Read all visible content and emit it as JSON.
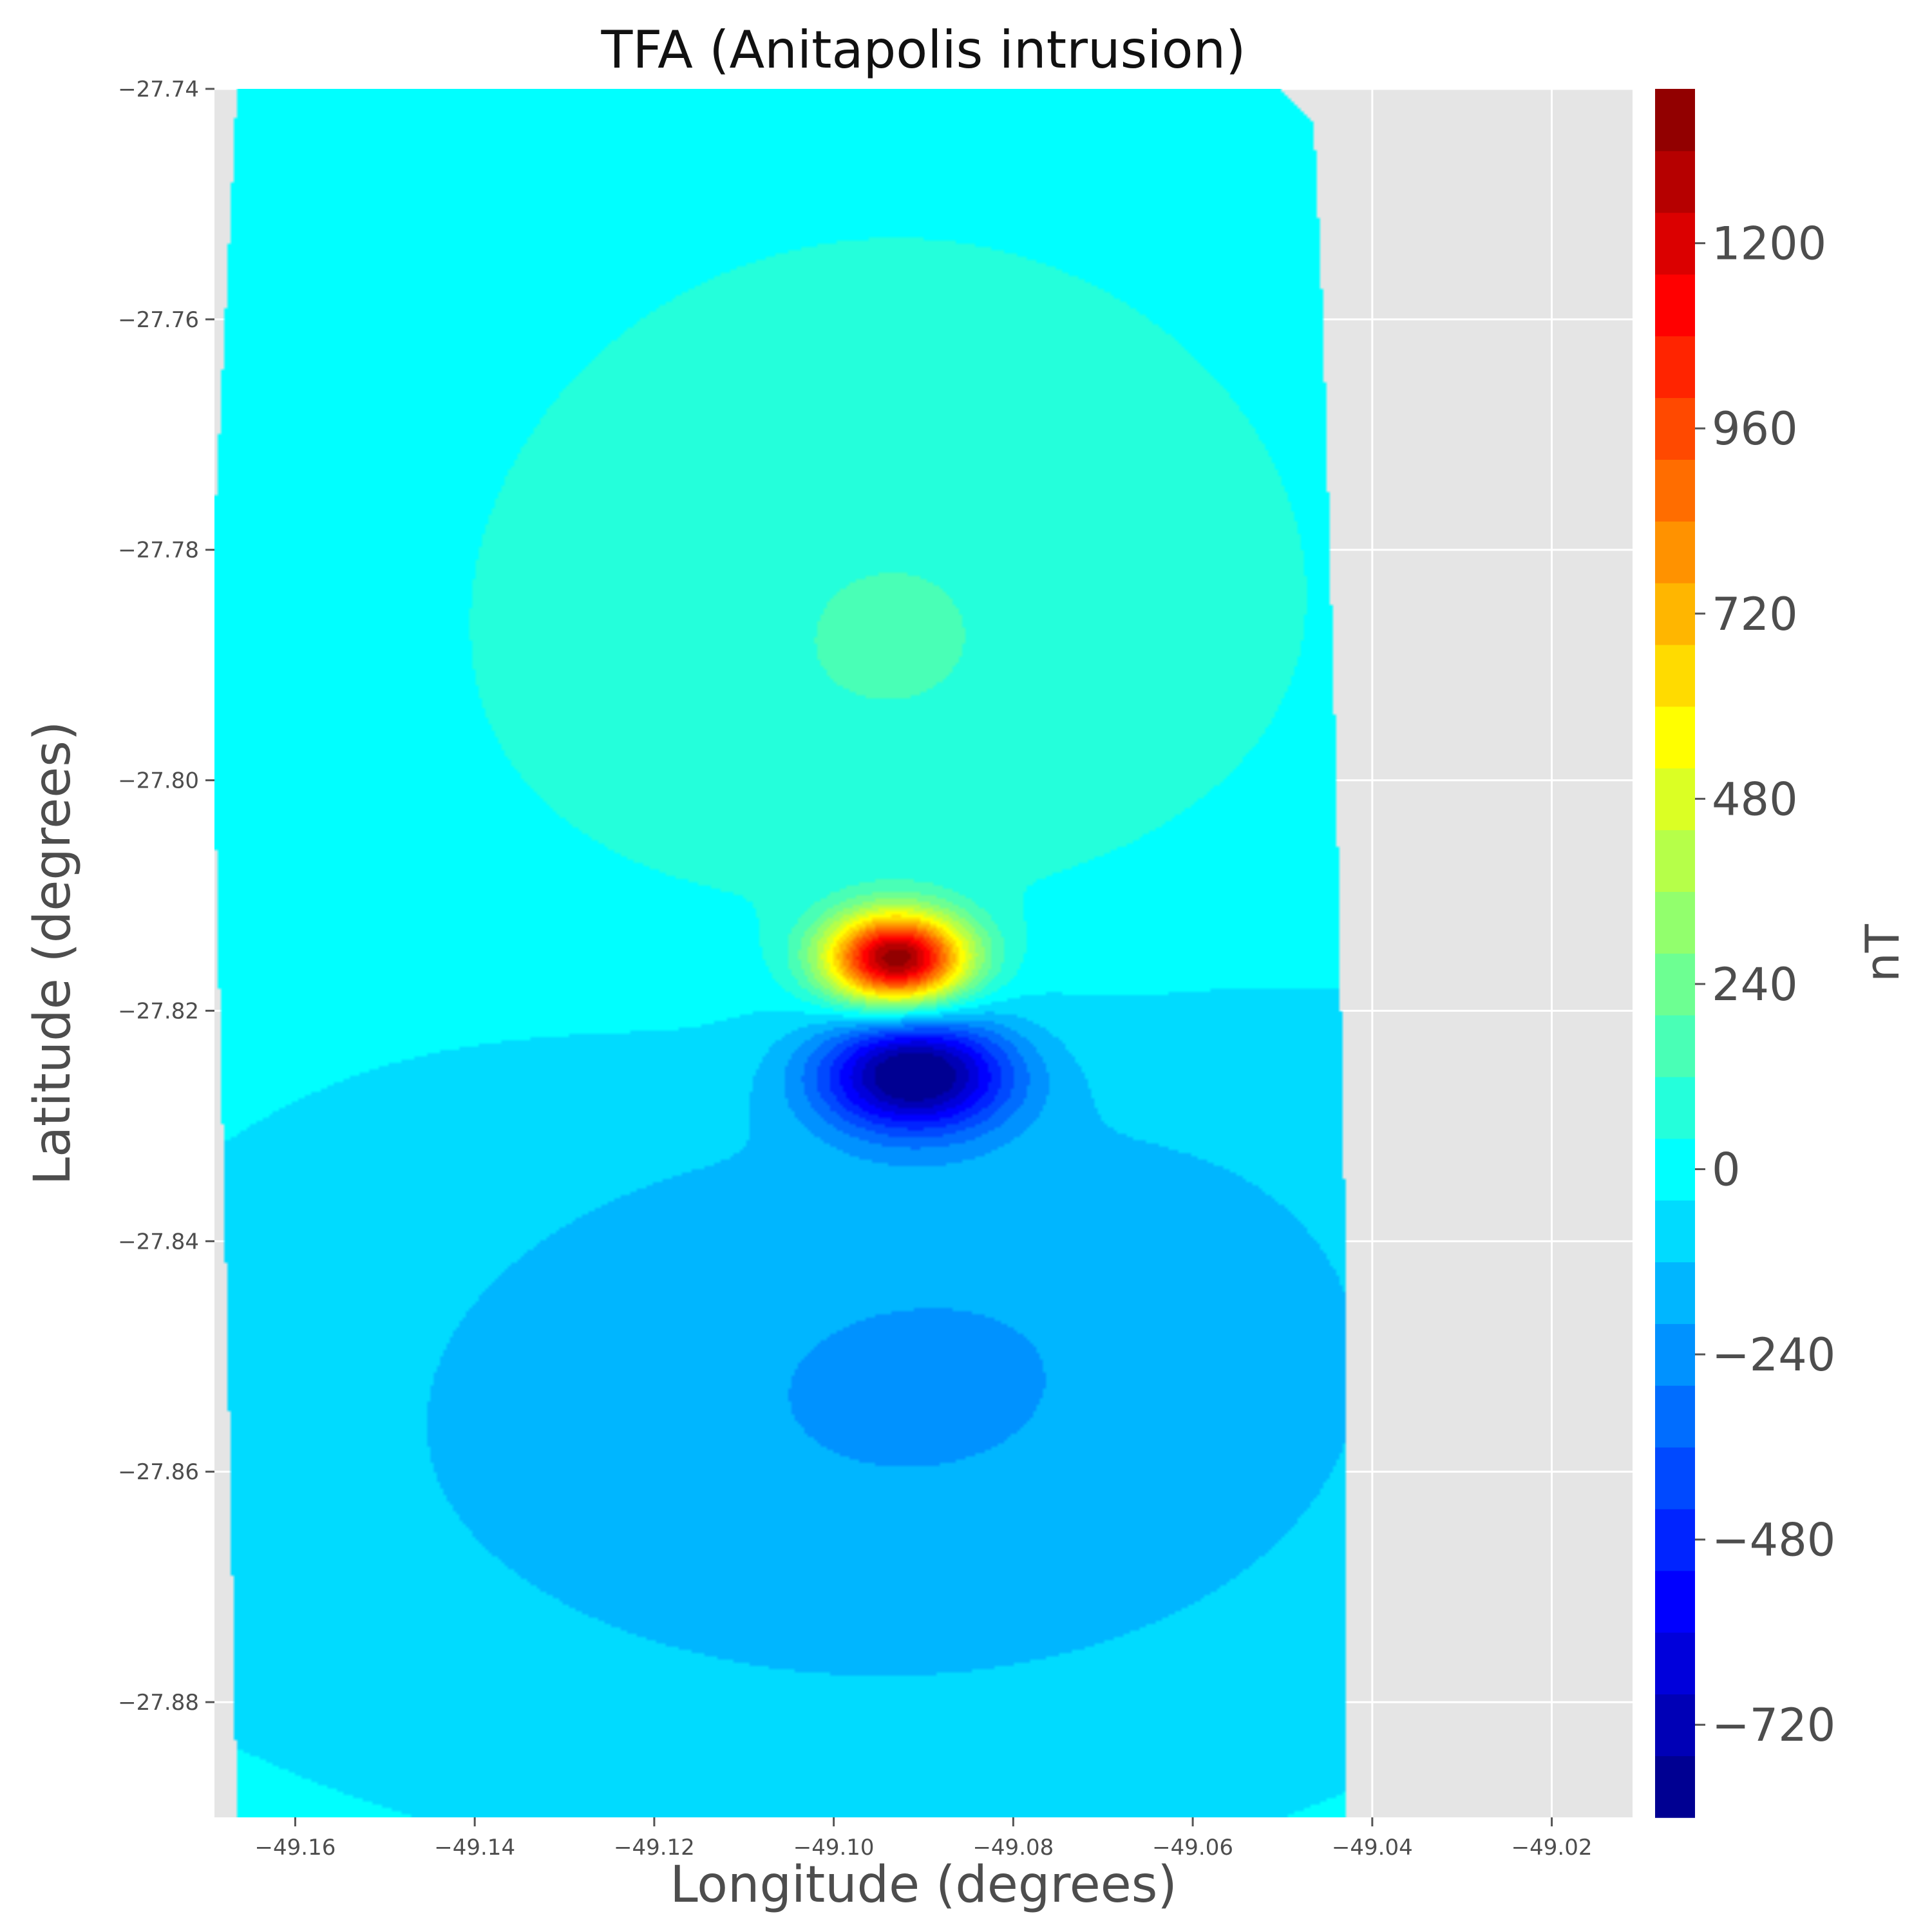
{
  "chart_data": {
    "type": "contourf",
    "title": "TFA (Anitapolis intrusion)",
    "xlabel": "Longitude (degrees)",
    "ylabel": "Latitude (degrees)",
    "colorbar_label": "nT",
    "xlim": [
      -49.169,
      -49.011
    ],
    "ylim": [
      -27.89,
      -27.74
    ],
    "xticks": [
      -49.16,
      -49.14,
      -49.12,
      -49.1,
      -49.08,
      -49.06,
      -49.04,
      -49.02
    ],
    "yticks": [
      -27.74,
      -27.76,
      -27.78,
      -27.8,
      -27.82,
      -27.84,
      -27.86,
      -27.88
    ],
    "xtick_labels": [
      "−49.16",
      "−49.14",
      "−49.12",
      "−49.10",
      "−49.08",
      "−49.06",
      "−49.04",
      "−49.02"
    ],
    "ytick_labels": [
      "−27.74",
      "−27.76",
      "−27.78",
      "−27.80",
      "−27.82",
      "−27.84",
      "−27.86",
      "−27.88"
    ],
    "colorbar_range": [
      -840,
      1400
    ],
    "level_step": 80,
    "colorbar_ticks": [
      -720,
      -480,
      -240,
      0,
      240,
      480,
      720,
      960,
      1200
    ],
    "colorbar_tick_labels": [
      "−720",
      "−480",
      "−240",
      "0",
      "240",
      "480",
      "720",
      "960",
      "1200"
    ],
    "colormap": "jet",
    "grid": true,
    "background_color": "#e5e5e5",
    "anomalies": [
      {
        "kind": "positive",
        "lon": -49.093,
        "lat": -27.8155,
        "peak": 1380,
        "sigma_lon": 0.0055,
        "sigma_lat": 0.0028
      },
      {
        "kind": "negative",
        "lon": -49.091,
        "lat": -27.8255,
        "peak": -820,
        "sigma_lon": 0.0075,
        "sigma_lat": 0.0035
      }
    ],
    "survey_outline": [
      [
        -49.1665,
        -27.74
      ],
      [
        -49.0505,
        -27.74
      ],
      [
        -49.0465,
        -27.743
      ],
      [
        -49.0455,
        -27.76
      ],
      [
        -49.044,
        -27.8
      ],
      [
        -49.043,
        -27.84
      ],
      [
        -49.043,
        -27.89
      ],
      [
        -49.1665,
        -27.89
      ],
      [
        -49.1675,
        -27.85
      ],
      [
        -49.169,
        -27.8
      ],
      [
        -49.169,
        -27.778
      ]
    ]
  }
}
